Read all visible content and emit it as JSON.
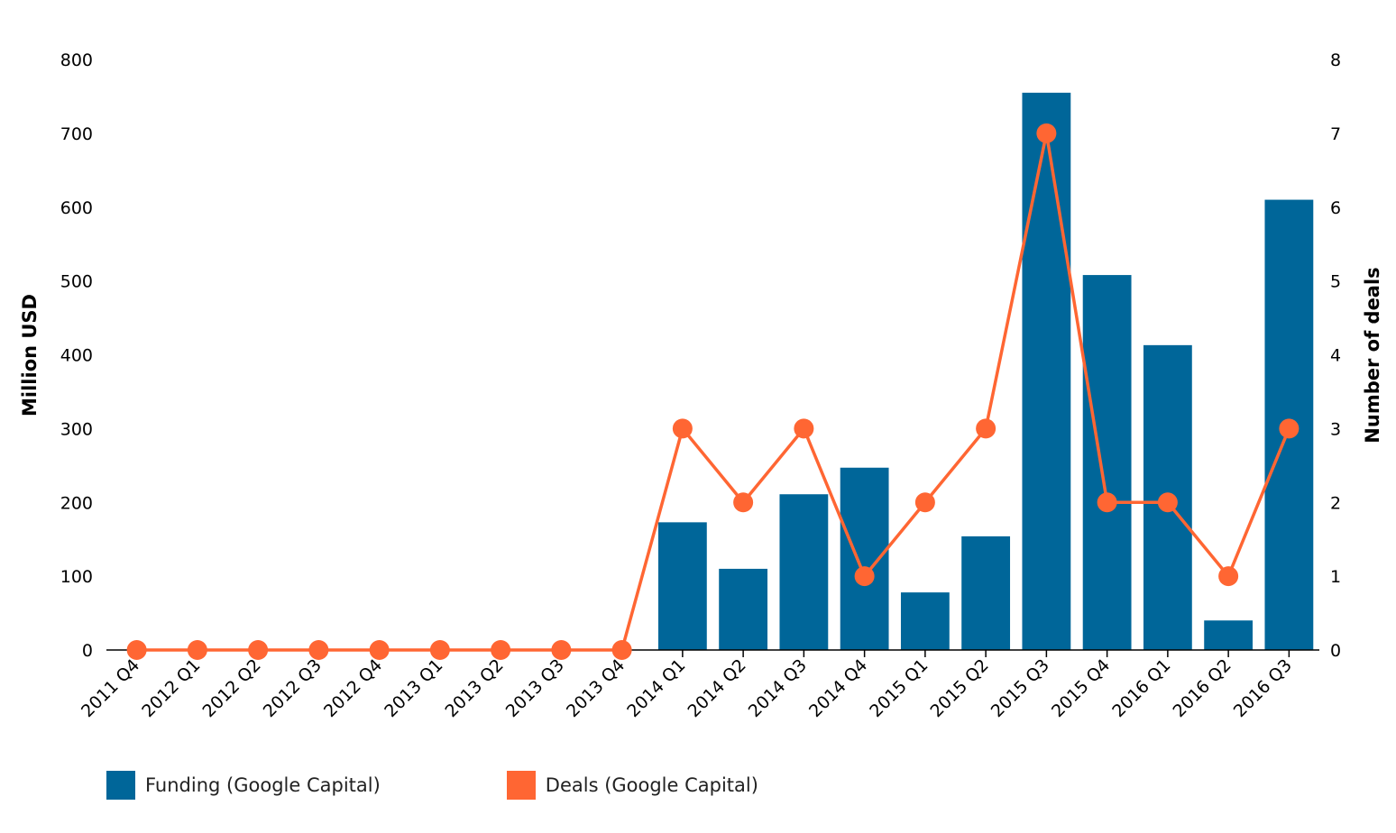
{
  "chart_data": {
    "type": "bar+line",
    "categories": [
      "2011 Q4",
      "2012 Q1",
      "2012 Q2",
      "2012 Q3",
      "2012 Q4",
      "2013 Q1",
      "2013 Q2",
      "2013 Q3",
      "2013 Q4",
      "2014 Q1",
      "2014 Q2",
      "2014 Q3",
      "2014 Q4",
      "2015 Q1",
      "2015 Q2",
      "2015 Q3",
      "2015 Q4",
      "2016 Q1",
      "2016 Q2",
      "2016 Q3"
    ],
    "series": [
      {
        "name": "Funding (Google Capital)",
        "type": "bar",
        "axis": "left",
        "color": "#006699",
        "values": [
          0,
          0,
          0,
          0,
          0,
          0,
          0,
          0,
          0,
          173,
          110,
          211,
          247,
          78,
          154,
          755,
          508,
          413,
          40,
          610
        ]
      },
      {
        "name": "Deals (Google Capital)",
        "type": "line",
        "axis": "right",
        "color": "#ff6633",
        "values": [
          0,
          0,
          0,
          0,
          0,
          0,
          0,
          0,
          0,
          3,
          2,
          3,
          1,
          2,
          3,
          7,
          2,
          2,
          1,
          3
        ]
      }
    ],
    "ylabel": "Million USD",
    "y2label": "Number of deals",
    "ylim": [
      0,
      800
    ],
    "y2lim": [
      0,
      8
    ],
    "yticks": [
      "0",
      "100",
      "200",
      "300",
      "400",
      "500",
      "600",
      "700",
      "800"
    ],
    "y2ticks": [
      "0",
      "1",
      "2",
      "3",
      "4",
      "5",
      "6",
      "7",
      "8"
    ],
    "legend_position": "bottom-left",
    "grid": false
  }
}
